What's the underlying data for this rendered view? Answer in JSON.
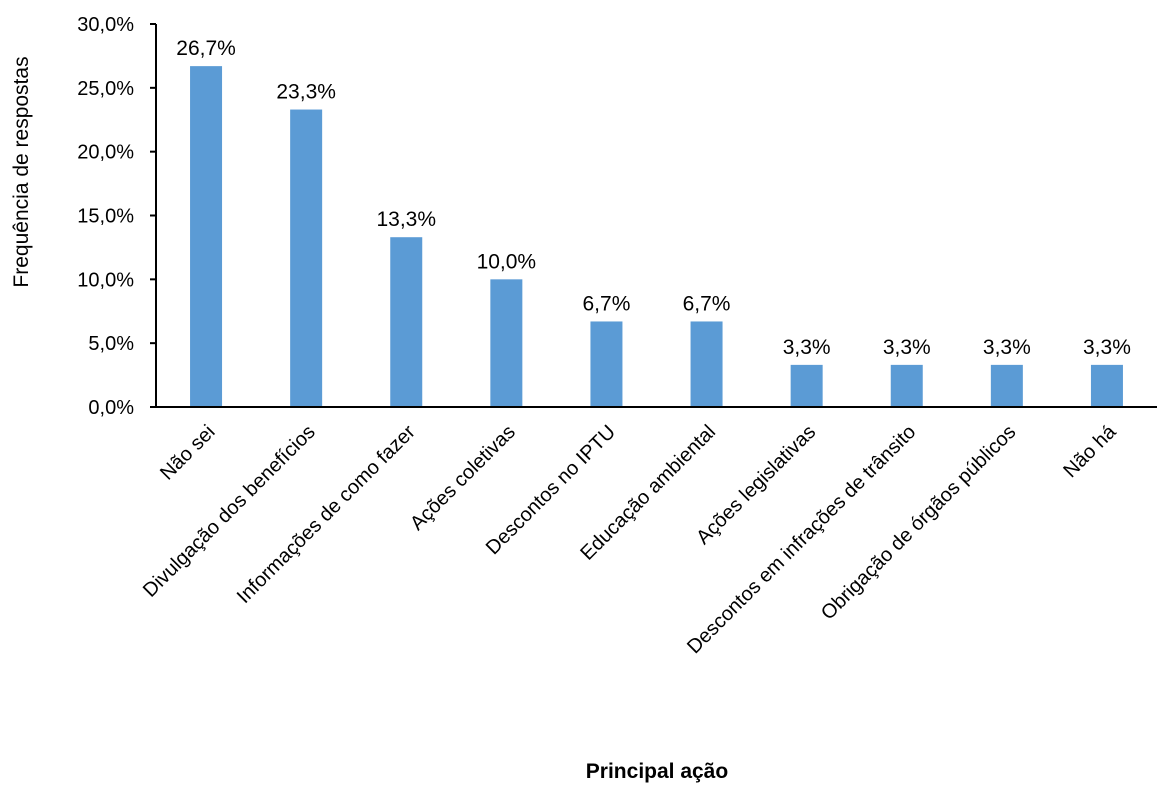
{
  "chart_data": {
    "type": "bar",
    "title": "",
    "xlabel": "Principal ação",
    "ylabel": "Frequência de respostas",
    "categories": [
      "Não sei",
      "Divulgação dos benefícios",
      "Informações de como fazer",
      "Ações coletivas",
      "Descontos no IPTU",
      "Educação ambiental",
      "Ações legislativas",
      "Descontos em infrações de trânsito",
      "Obrigação de órgãos públicos",
      "Não há"
    ],
    "values": [
      26.7,
      23.3,
      13.3,
      10.0,
      6.7,
      6.7,
      3.3,
      3.3,
      3.3,
      3.3
    ],
    "value_labels": [
      "26,7%",
      "23,3%",
      "13,3%",
      "10,0%",
      "6,7%",
      "6,7%",
      "3,3%",
      "3,3%",
      "3,3%",
      "3,3%"
    ],
    "ylim": [
      0,
      30
    ],
    "yticks": [
      0,
      5,
      10,
      15,
      20,
      25,
      30
    ],
    "ytick_labels": [
      "0,0%",
      "5,0%",
      "10,0%",
      "15,0%",
      "20,0%",
      "25,0%",
      "30,0%"
    ],
    "grid": false,
    "legend": "none",
    "bar_color": "#5B9BD5"
  }
}
